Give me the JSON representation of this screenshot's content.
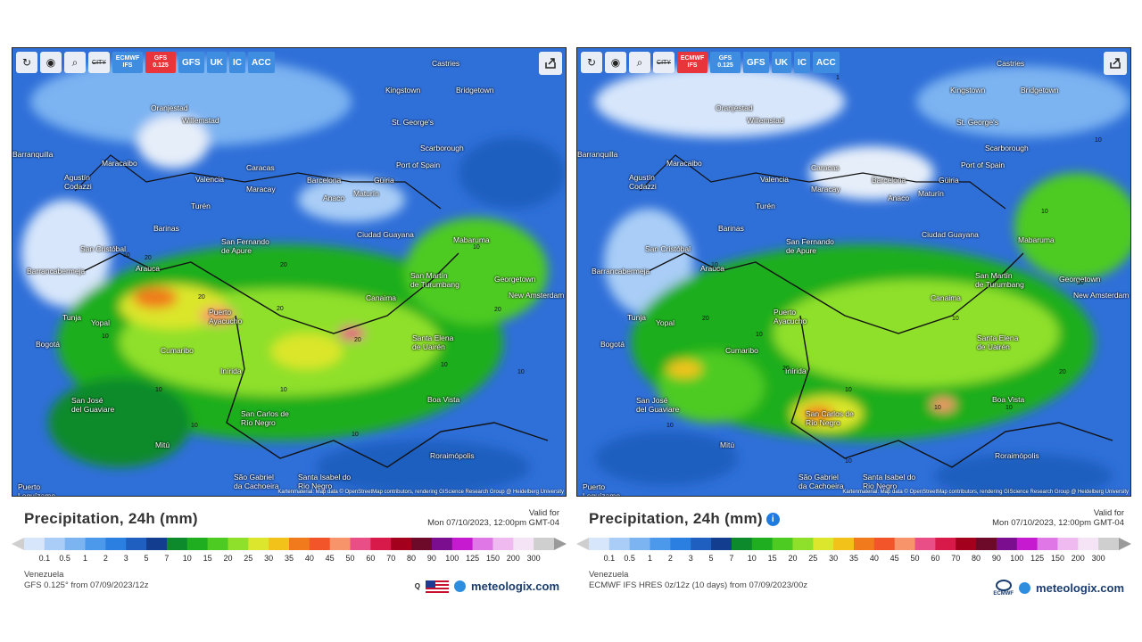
{
  "panels": [
    {
      "id": "left",
      "toolbar": {
        "city_label": "CITY",
        "models": [
          {
            "label": "ECMWF\nIFS",
            "lines": [
              "ECMWF",
              "IFS"
            ],
            "active": false
          },
          {
            "label": "GFS 0.125",
            "lines": [
              "GFS",
              "0.125"
            ],
            "active": true
          },
          {
            "label": "GFS",
            "lines": [
              "GFS"
            ],
            "active": false
          },
          {
            "label": "UK",
            "lines": [
              "UK"
            ],
            "active": false
          },
          {
            "label": "IC",
            "lines": [
              "IC"
            ],
            "active": false
          },
          {
            "label": "ACC",
            "lines": [
              "ACC"
            ],
            "active": false
          }
        ]
      },
      "title": "Precipitation, 24h (mm)",
      "valid_label": "Valid for",
      "valid_time": "Mon 07/10/2023, 12:00pm GMT-04",
      "region": "Venezuela",
      "source": "GFS 0.125° from 07/09/2023/12z",
      "show_info_icon": false,
      "attribution": "Kartenmaterial: Map data © OpenStreetMap contributors, rendering GIScience Research Group @ Heidelberg University",
      "brand": "meteologix.com",
      "contour_numbers": [
        "10",
        "20",
        "20",
        "20",
        "20",
        "10",
        "10",
        "10",
        "20",
        "20",
        "10",
        "10",
        "10",
        "10",
        "10"
      ]
    },
    {
      "id": "right",
      "toolbar": {
        "city_label": "CITY",
        "models": [
          {
            "label": "ECMWF\nIFS",
            "lines": [
              "ECMWF",
              "IFS"
            ],
            "active": true
          },
          {
            "label": "GFS 0.125",
            "lines": [
              "GFS",
              "0.125"
            ],
            "active": false
          },
          {
            "label": "GFS",
            "lines": [
              "GFS"
            ],
            "active": false
          },
          {
            "label": "UK",
            "lines": [
              "UK"
            ],
            "active": false
          },
          {
            "label": "IC",
            "lines": [
              "IC"
            ],
            "active": false
          },
          {
            "label": "ACC",
            "lines": [
              "ACC"
            ],
            "active": false
          }
        ]
      },
      "title": "Precipitation, 24h (mm)",
      "valid_label": "Valid for",
      "valid_time": "Mon 07/10/2023, 12:00pm GMT-04",
      "region": "Venezuela",
      "source": "ECMWF IFS HRES 0z/12z (10 days) from 07/09/2023/00z",
      "show_info_icon": true,
      "attribution": "Kartenmaterial: Map data © OpenStreetMap contributors, rendering GIScience Research Group @ Heidelberg University",
      "brand": "meteologix.com",
      "ecmwf_logo_text": "ECMWF",
      "contour_numbers": [
        "10",
        "20",
        "10",
        "20",
        "10",
        "10",
        "10",
        "20",
        "10",
        "10",
        "10",
        "10",
        "10",
        "10",
        "1"
      ]
    }
  ],
  "cities": [
    "Castries",
    "Kingstown",
    "Bridgetown",
    "Oranjestad",
    "Willemstad",
    "St. George's",
    "Scarborough",
    "Barranquilla",
    "Port of Spain",
    "Maracaibo",
    "Caracas",
    "Agustín Codazzi",
    "Valencia",
    "Maracay",
    "Barcelona",
    "Güiria",
    "Maturín",
    "Anaco",
    "Turén",
    "Barinas",
    "Ciudad Guayana",
    "Mabaruma",
    "San Cristóbal",
    "San Fernando de Apure",
    "Barrancabermeja",
    "Arauca",
    "San Martín de Turumbang",
    "Georgetown",
    "New Amsterdam",
    "Canaima",
    "Tunja",
    "Yopal",
    "Puerto Ayacucho",
    "Bogotá",
    "Santa Elena de Uairén",
    "Cumaribo",
    "Inírida",
    "Boa Vista",
    "San José del Guaviare",
    "San Carlos de Río Negro",
    "Mitú",
    "Roraimópolis",
    "São Gabriel da Cachoeira",
    "Santa Isabel do Rio Negro",
    "Puerto Leguízamo"
  ],
  "scale": {
    "values": [
      "0.1",
      "0.5",
      "1",
      "2",
      "3",
      "5",
      "7",
      "10",
      "15",
      "20",
      "25",
      "30",
      "35",
      "40",
      "45",
      "50",
      "60",
      "70",
      "80",
      "90",
      "100",
      "125",
      "150",
      "200",
      "300"
    ],
    "colors": [
      "#d7e6fb",
      "#a9cdf6",
      "#7cb3f1",
      "#4c98ea",
      "#2a7fe0",
      "#1e5fbf",
      "#133d8f",
      "#0d8a2c",
      "#1fae1f",
      "#4ecb22",
      "#8fe02a",
      "#dbe62c",
      "#f2c21a",
      "#f07a1c",
      "#f2552a",
      "#f7946a",
      "#e94e86",
      "#d81a4a",
      "#a3001d",
      "#6d0a2a",
      "#7b0d8f",
      "#c51ad0",
      "#df78e6",
      "#efbaf0",
      "#f5e3f6",
      "#cfcfcf"
    ]
  },
  "colors": {
    "map_base": "#2f6fd8",
    "active_model": "#e8353c",
    "inactive_model": "#3f8de0",
    "brand": "#1a3c6e"
  },
  "icons": [
    "refresh-icon",
    "location-pin-icon",
    "zoom-icon",
    "share-icon",
    "info-icon",
    "us-flag-icon",
    "ecmwf-logo-icon"
  ]
}
